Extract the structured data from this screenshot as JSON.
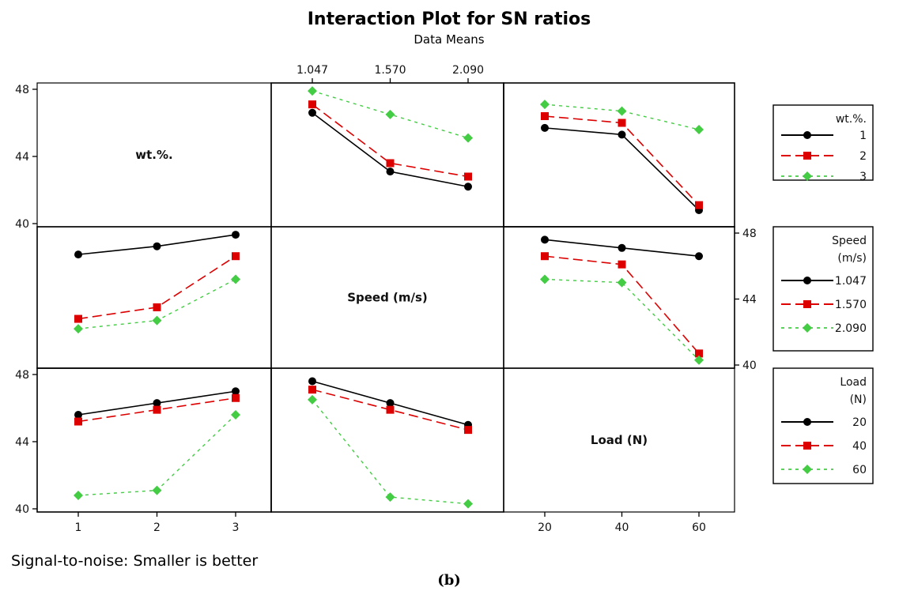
{
  "chart_data": {
    "type": "line",
    "title": "Interaction Plot for SN ratios",
    "subtitle": "Data Means",
    "footnote": "Signal-to-noise: Smaller is better",
    "caption": "(b)",
    "ylim": [
      40,
      48
    ],
    "yticks": [
      "40",
      "44",
      "48"
    ],
    "grid": false,
    "factors": [
      {
        "name": "wt.%.",
        "levels": [
          "1",
          "2",
          "3"
        ],
        "legend_title": [
          "wt.%."
        ],
        "legend_levels": [
          "1",
          "2",
          "3"
        ]
      },
      {
        "name": "Speed (m/s)",
        "levels": [
          "1.047",
          "1.570",
          "2.090"
        ],
        "legend_title": [
          "Speed",
          "(m/s)"
        ],
        "legend_levels": [
          "1.047",
          "1.570",
          "2.090"
        ]
      },
      {
        "name": "Load (N)",
        "levels": [
          "20",
          "40",
          "60"
        ],
        "legend_title": [
          "Load",
          "(N)"
        ],
        "legend_levels": [
          "20",
          "40",
          "60"
        ]
      }
    ],
    "series_colors": [
      "#000000",
      "#dd0000",
      "#44cc44"
    ],
    "series_markers": [
      "circle",
      "square",
      "diamond"
    ],
    "panels": [
      {
        "row": 0,
        "col": 1,
        "x_factor": "Speed (m/s)",
        "trace_factor": "wt.%.",
        "series": [
          {
            "name": "1",
            "values": [
              46.6,
              43.1,
              42.2
            ]
          },
          {
            "name": "2",
            "values": [
              47.1,
              43.6,
              42.8
            ]
          },
          {
            "name": "3",
            "values": [
              47.9,
              46.5,
              45.1
            ]
          }
        ]
      },
      {
        "row": 0,
        "col": 2,
        "x_factor": "Load (N)",
        "trace_factor": "wt.%.",
        "series": [
          {
            "name": "1",
            "values": [
              45.7,
              45.3,
              40.8
            ]
          },
          {
            "name": "2",
            "values": [
              46.4,
              46.0,
              41.1
            ]
          },
          {
            "name": "3",
            "values": [
              47.1,
              46.7,
              45.6
            ]
          }
        ]
      },
      {
        "row": 1,
        "col": 0,
        "x_factor": "wt.%.",
        "trace_factor": "Speed (m/s)",
        "series": [
          {
            "name": "1.047",
            "values": [
              46.7,
              47.2,
              47.9
            ]
          },
          {
            "name": "1.570",
            "values": [
              42.8,
              43.5,
              46.6
            ]
          },
          {
            "name": "2.090",
            "values": [
              42.2,
              42.7,
              45.2
            ]
          }
        ]
      },
      {
        "row": 1,
        "col": 2,
        "x_factor": "Load (N)",
        "trace_factor": "Speed (m/s)",
        "series": [
          {
            "name": "1.047",
            "values": [
              47.6,
              47.1,
              46.6
            ]
          },
          {
            "name": "1.570",
            "values": [
              46.6,
              46.1,
              40.7
            ]
          },
          {
            "name": "2.090",
            "values": [
              45.2,
              45.0,
              40.3
            ]
          }
        ]
      },
      {
        "row": 2,
        "col": 0,
        "x_factor": "wt.%.",
        "trace_factor": "Load (N)",
        "series": [
          {
            "name": "20",
            "values": [
              45.6,
              46.3,
              47.0
            ]
          },
          {
            "name": "40",
            "values": [
              45.2,
              45.9,
              46.6
            ]
          },
          {
            "name": "60",
            "values": [
              40.8,
              41.1,
              45.6
            ]
          }
        ]
      },
      {
        "row": 2,
        "col": 1,
        "x_factor": "Speed (m/s)",
        "trace_factor": "Load (N)",
        "series": [
          {
            "name": "20",
            "values": [
              47.6,
              46.3,
              45.0
            ]
          },
          {
            "name": "40",
            "values": [
              47.1,
              45.9,
              44.7
            ]
          },
          {
            "name": "60",
            "values": [
              46.5,
              40.7,
              40.3
            ]
          }
        ]
      }
    ]
  }
}
